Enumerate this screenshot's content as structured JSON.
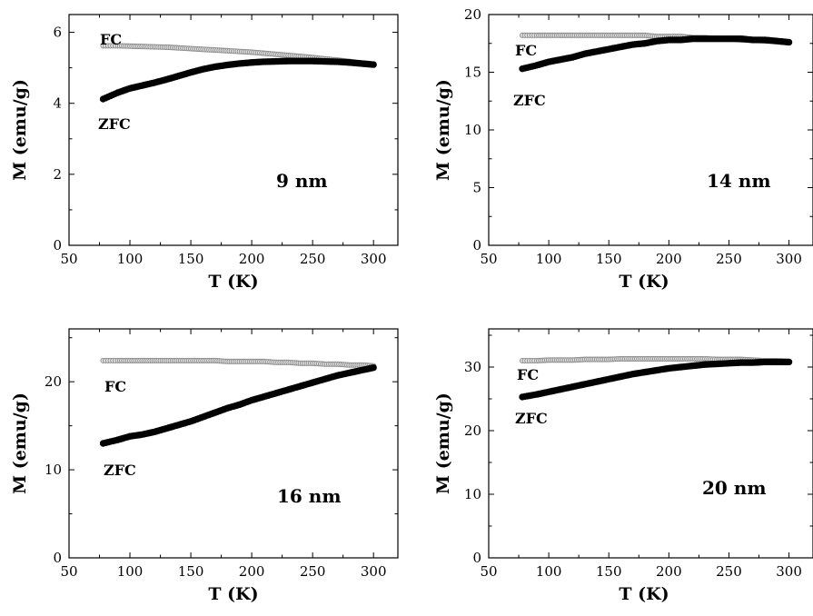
{
  "chart_data": [
    {
      "type": "scatter",
      "xlabel": "T (K)",
      "ylabel": "M (emu/g)",
      "xlim": [
        50,
        320
      ],
      "ylim": [
        0,
        6.5
      ],
      "xticks": [
        50,
        100,
        150,
        200,
        250,
        300
      ],
      "yticks": [
        0,
        2,
        4,
        6
      ],
      "annotations": {
        "fc": "FC",
        "zfc": "ZFC",
        "size": "9 nm"
      },
      "series": [
        {
          "name": "FC",
          "color": "#e2e2e2",
          "x": [
            78,
            90,
            100,
            110,
            120,
            130,
            140,
            150,
            160,
            170,
            180,
            190,
            200,
            210,
            220,
            230,
            240,
            250,
            260,
            270,
            280,
            290,
            300
          ],
          "y": [
            5.62,
            5.62,
            5.61,
            5.6,
            5.59,
            5.58,
            5.56,
            5.54,
            5.52,
            5.5,
            5.48,
            5.46,
            5.44,
            5.41,
            5.38,
            5.35,
            5.32,
            5.29,
            5.25,
            5.22,
            5.18,
            5.14,
            5.1
          ]
        },
        {
          "name": "ZFC",
          "color": "#000000",
          "x": [
            78,
            90,
            100,
            110,
            120,
            130,
            140,
            150,
            160,
            170,
            180,
            190,
            200,
            210,
            220,
            230,
            240,
            250,
            260,
            270,
            280,
            290,
            300
          ],
          "y": [
            4.12,
            4.3,
            4.42,
            4.5,
            4.58,
            4.67,
            4.77,
            4.87,
            4.96,
            5.03,
            5.08,
            5.12,
            5.15,
            5.17,
            5.18,
            5.19,
            5.19,
            5.19,
            5.18,
            5.17,
            5.15,
            5.12,
            5.09
          ]
        }
      ]
    },
    {
      "type": "scatter",
      "xlabel": "T (K)",
      "ylabel": "M (emu/g)",
      "xlim": [
        50,
        320
      ],
      "ylim": [
        0,
        20
      ],
      "xticks": [
        50,
        100,
        150,
        200,
        250,
        300
      ],
      "yticks": [
        0,
        5,
        10,
        15,
        20
      ],
      "annotations": {
        "fc": "FC",
        "zfc": "ZFC",
        "size": "14 nm"
      },
      "series": [
        {
          "name": "FC",
          "color": "#e2e2e2",
          "x": [
            78,
            90,
            100,
            110,
            120,
            130,
            140,
            150,
            160,
            170,
            180,
            190,
            200,
            210,
            220,
            230,
            240,
            250,
            260,
            270,
            280,
            290,
            300
          ],
          "y": [
            18.2,
            18.2,
            18.2,
            18.2,
            18.2,
            18.2,
            18.2,
            18.2,
            18.2,
            18.2,
            18.2,
            18.1,
            18.1,
            18.1,
            18.0,
            18.0,
            17.9,
            17.9,
            17.8,
            17.8,
            17.7,
            17.7,
            17.6
          ]
        },
        {
          "name": "ZFC",
          "color": "#000000",
          "x": [
            78,
            90,
            100,
            110,
            120,
            130,
            140,
            150,
            160,
            170,
            180,
            190,
            200,
            210,
            220,
            230,
            240,
            250,
            260,
            270,
            280,
            290,
            300
          ],
          "y": [
            15.3,
            15.6,
            15.9,
            16.1,
            16.3,
            16.6,
            16.8,
            17.0,
            17.2,
            17.4,
            17.5,
            17.7,
            17.8,
            17.8,
            17.9,
            17.9,
            17.9,
            17.9,
            17.9,
            17.8,
            17.8,
            17.7,
            17.6
          ]
        }
      ]
    },
    {
      "type": "scatter",
      "xlabel": "T (K)",
      "ylabel": "M (emu/g)",
      "xlim": [
        50,
        320
      ],
      "ylim": [
        0,
        26
      ],
      "xticks": [
        50,
        100,
        150,
        200,
        250,
        300
      ],
      "yticks": [
        0,
        10,
        20
      ],
      "annotations": {
        "fc": "FC",
        "zfc": "ZFC",
        "size": "16 nm"
      },
      "series": [
        {
          "name": "FC",
          "color": "#e2e2e2",
          "x": [
            78,
            90,
            100,
            110,
            120,
            130,
            140,
            150,
            160,
            170,
            180,
            190,
            200,
            210,
            220,
            230,
            240,
            250,
            260,
            270,
            280,
            290,
            300
          ],
          "y": [
            22.4,
            22.4,
            22.4,
            22.4,
            22.4,
            22.4,
            22.4,
            22.4,
            22.4,
            22.4,
            22.3,
            22.3,
            22.3,
            22.3,
            22.2,
            22.2,
            22.1,
            22.1,
            22.0,
            22.0,
            21.9,
            21.9,
            21.8
          ]
        },
        {
          "name": "ZFC",
          "color": "#000000",
          "x": [
            78,
            90,
            100,
            110,
            120,
            130,
            140,
            150,
            160,
            170,
            180,
            190,
            200,
            210,
            220,
            230,
            240,
            250,
            260,
            270,
            280,
            290,
            300
          ],
          "y": [
            13.0,
            13.4,
            13.8,
            14.0,
            14.3,
            14.7,
            15.1,
            15.5,
            16.0,
            16.5,
            17.0,
            17.4,
            17.9,
            18.3,
            18.7,
            19.1,
            19.5,
            19.9,
            20.3,
            20.7,
            21.0,
            21.3,
            21.6
          ]
        }
      ]
    },
    {
      "type": "scatter",
      "xlabel": "T (K)",
      "ylabel": "M (emu/g)",
      "xlim": [
        50,
        320
      ],
      "ylim": [
        0,
        36
      ],
      "xticks": [
        50,
        100,
        150,
        200,
        250,
        300
      ],
      "yticks": [
        0,
        10,
        20,
        30
      ],
      "annotations": {
        "fc": "FC",
        "zfc": "ZFC",
        "size": "20 nm"
      },
      "series": [
        {
          "name": "FC",
          "color": "#e2e2e2",
          "x": [
            78,
            90,
            100,
            110,
            120,
            130,
            140,
            150,
            160,
            170,
            180,
            190,
            200,
            210,
            220,
            230,
            240,
            250,
            260,
            270,
            280,
            290,
            300
          ],
          "y": [
            31.0,
            31.0,
            31.1,
            31.1,
            31.1,
            31.2,
            31.2,
            31.2,
            31.3,
            31.3,
            31.3,
            31.3,
            31.3,
            31.3,
            31.3,
            31.3,
            31.2,
            31.2,
            31.2,
            31.1,
            31.0,
            31.0,
            30.9
          ]
        },
        {
          "name": "ZFC",
          "color": "#000000",
          "x": [
            78,
            90,
            100,
            110,
            120,
            130,
            140,
            150,
            160,
            170,
            180,
            190,
            200,
            210,
            220,
            230,
            240,
            250,
            260,
            270,
            280,
            290,
            300
          ],
          "y": [
            25.3,
            25.7,
            26.1,
            26.5,
            26.9,
            27.3,
            27.7,
            28.1,
            28.5,
            28.9,
            29.2,
            29.5,
            29.8,
            30.0,
            30.2,
            30.4,
            30.5,
            30.6,
            30.7,
            30.7,
            30.8,
            30.8,
            30.8
          ]
        }
      ]
    }
  ]
}
